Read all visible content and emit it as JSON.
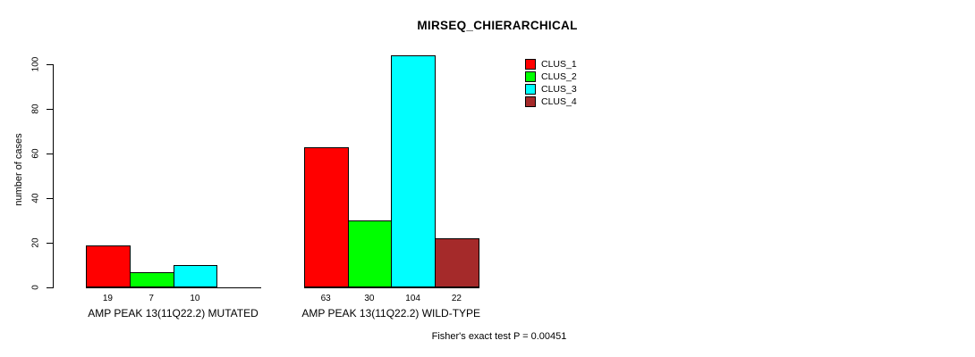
{
  "chart_data": {
    "type": "bar",
    "title": "MIRSEQ_CHIERARCHICAL",
    "ylabel": "number of cases",
    "xlabel": "",
    "ylim": [
      0,
      100
    ],
    "yticks": [
      0,
      20,
      40,
      60,
      80,
      100
    ],
    "grid": false,
    "legend_position": "top-right",
    "series": [
      {
        "name": "CLUS_1",
        "color": "#FF0000"
      },
      {
        "name": "CLUS_2",
        "color": "#00FF00"
      },
      {
        "name": "CLUS_3",
        "color": "#00FFFF"
      },
      {
        "name": "CLUS_4",
        "color": "#A52A2A"
      }
    ],
    "groups": [
      {
        "label": "AMP PEAK 13(11Q22.2) MUTATED",
        "values": [
          19,
          7,
          10,
          null
        ]
      },
      {
        "label": "AMP PEAK 13(11Q22.2) WILD-TYPE",
        "values": [
          63,
          30,
          104,
          22
        ]
      }
    ],
    "annotation": "Fisher's exact test P = 0.00451"
  }
}
